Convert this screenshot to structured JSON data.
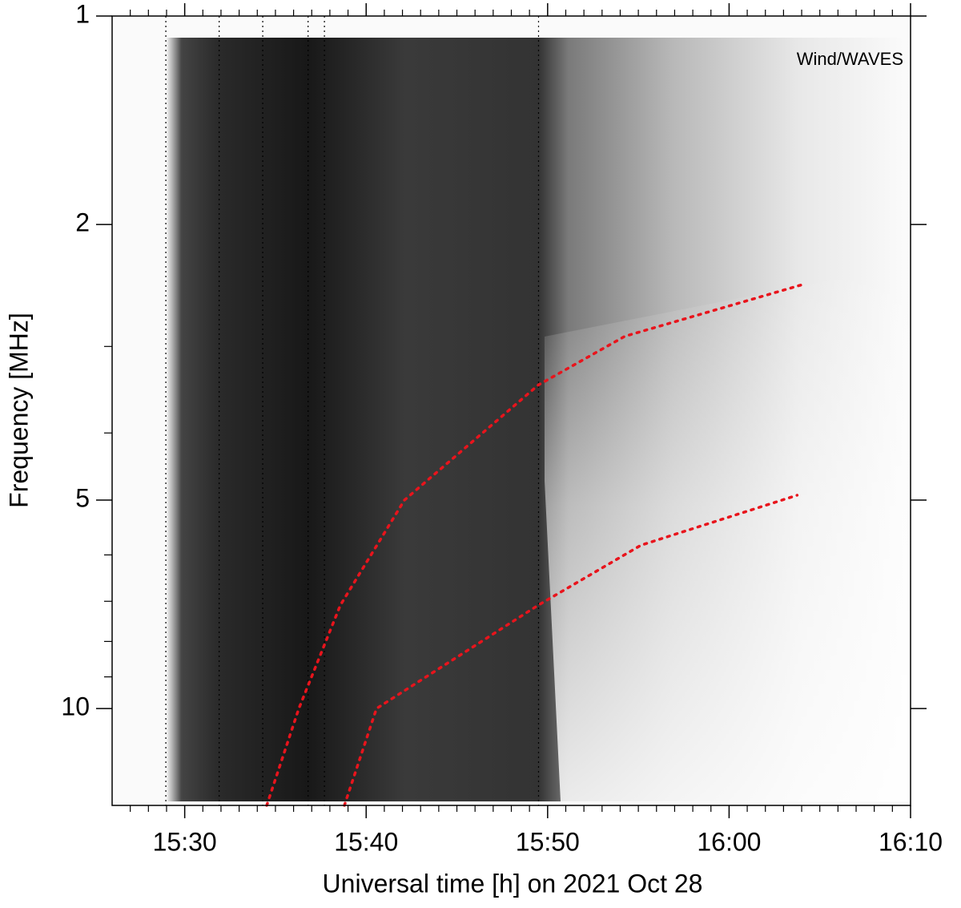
{
  "chart_data": {
    "type": "spectrogram",
    "annotation": "Wind/WAVES",
    "xlabel": "Universal time [h] on 2021 Oct 28",
    "ylabel": "Frequency [MHz]",
    "xlim": [
      926,
      970
    ],
    "xticks": [
      {
        "value": 930,
        "label": "15:30"
      },
      {
        "value": 940,
        "label": "15:40"
      },
      {
        "value": 950,
        "label": "15:50"
      },
      {
        "value": 960,
        "label": "16:00"
      },
      {
        "value": 970,
        "label": "16:10"
      }
    ],
    "xminorticks": [
      927,
      928,
      929,
      931,
      932,
      933,
      934,
      935,
      936,
      937,
      938,
      939,
      941,
      942,
      943,
      944,
      945,
      946,
      947,
      948,
      949,
      951,
      952,
      953,
      954,
      955,
      956,
      957,
      958,
      959,
      961,
      962,
      963,
      964,
      965,
      966,
      967,
      968,
      969
    ],
    "ylim": [
      1,
      13.8
    ],
    "ylog": true,
    "yinverted": true,
    "yticks": [
      1,
      2,
      5,
      10
    ],
    "yminorticks": [
      3,
      4,
      6,
      7,
      8,
      9
    ],
    "vlines": [
      928.96,
      931.9,
      934.3,
      936.8,
      937.7,
      949.5
    ],
    "vline_color": "#000000",
    "series": [
      {
        "color": "#e8141c",
        "x": [
          934.52,
          936.29,
          938.58,
          942.11,
          949.49,
          954.26,
          964.1
        ],
        "values": [
          13.8,
          10,
          7.09,
          5,
          3.41,
          2.9,
          2.44
        ]
      },
      {
        "color": "#e8141c",
        "x": [
          938.8,
          940.57,
          949.49,
          955.14,
          963.75
        ],
        "values": [
          13.8,
          10,
          7.09,
          5.81,
          4.92
        ]
      }
    ]
  }
}
